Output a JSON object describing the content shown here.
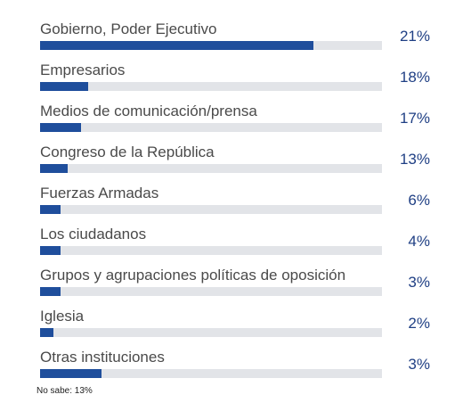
{
  "chart_data": {
    "type": "bar",
    "orientation": "horizontal",
    "categories": [
      "Gobierno, Poder Ejecutivo",
      "Empresarios",
      "Medios de comunicación/prensa",
      "Congreso de la República",
      "Fuerzas Armadas",
      "Los ciudadanos",
      "Grupos y agrupaciones políticas de oposición",
      "Iglesia",
      "Otras instituciones"
    ],
    "values": [
      21,
      18,
      17,
      13,
      6,
      4,
      3,
      2,
      3
    ],
    "value_labels": [
      "21%",
      "18%",
      "17%",
      "13%",
      "6%",
      "4%",
      "3%",
      "2%",
      "3%"
    ],
    "bar_fill_fraction": [
      0.8,
      0.14,
      0.12,
      0.08,
      0.06,
      0.06,
      0.06,
      0.04,
      0.18
    ],
    "unit": "%",
    "colors": {
      "bar": "#1f4e9c",
      "track": "#e2e4e8",
      "value_text": "#1f3f84"
    }
  },
  "footnote": "No sabe: 13%"
}
